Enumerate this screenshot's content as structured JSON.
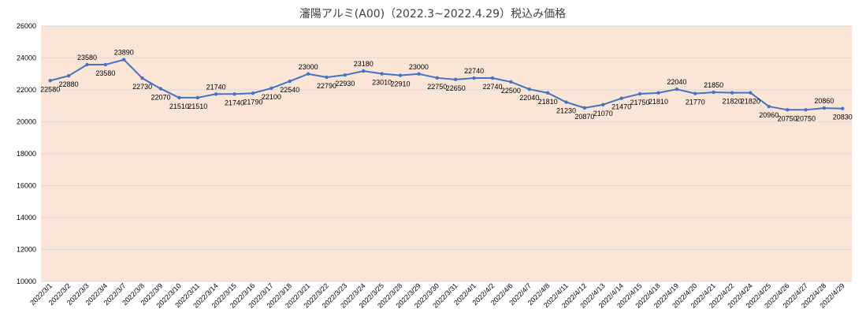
{
  "chart_data": {
    "type": "line",
    "title": "瀋陽アルミ(A00)（2022.3~2022.4.29）税込み価格",
    "xlabel": "",
    "ylabel": "",
    "ylim": [
      10000,
      26000
    ],
    "yticks": [
      10000,
      12000,
      14000,
      16000,
      18000,
      20000,
      22000,
      24000,
      26000
    ],
    "grid": true,
    "legend": "none",
    "colors": {
      "line": "#4472c4",
      "plot_bg": "#fbe5d6",
      "grid": "#d9d9d9"
    },
    "categories": [
      "2022/3/1",
      "2022/3/2",
      "2022/3/3",
      "2022/3/4",
      "2022/3/7",
      "2022/3/8",
      "2022/3/9",
      "2022/3/10",
      "2022/3/11",
      "2022/3/14",
      "2022/3/15",
      "2022/3/16",
      "2022/3/17",
      "2022/3/18",
      "2022/3/21",
      "2022/3/22",
      "2022/3/23",
      "2022/3/24",
      "2022/3/25",
      "2022/3/28",
      "2022/3/29",
      "2022/3/30",
      "2022/3/31",
      "2022/4/1",
      "2022/4/2",
      "2022/4/6",
      "2022/4/7",
      "2022/4/8",
      "2022/4/11",
      "2022/4/12",
      "2022/4/13",
      "2022/4/14",
      "2022/4/15",
      "2022/4/18",
      "2022/4/19",
      "2022/4/20",
      "2022/4/21",
      "2022/4/22",
      "2022/4/24",
      "2022/4/25",
      "2022/4/26",
      "2022/4/27",
      "2022/4/28",
      "2022/4/29"
    ],
    "series": [
      {
        "values": [
          22580,
          22880,
          23580,
          23580,
          23890,
          22730,
          22070,
          21510,
          21510,
          21740,
          21740,
          21790,
          22100,
          22540,
          23000,
          22790,
          22930,
          23180,
          23010,
          22910,
          23000,
          22750,
          22650,
          22740,
          22740,
          22500,
          22040,
          21810,
          21230,
          20870,
          21070,
          21470,
          21750,
          21810,
          22040,
          21770,
          21850,
          21820,
          21820,
          20960,
          20750,
          20750,
          20860,
          20830
        ]
      }
    ]
  }
}
